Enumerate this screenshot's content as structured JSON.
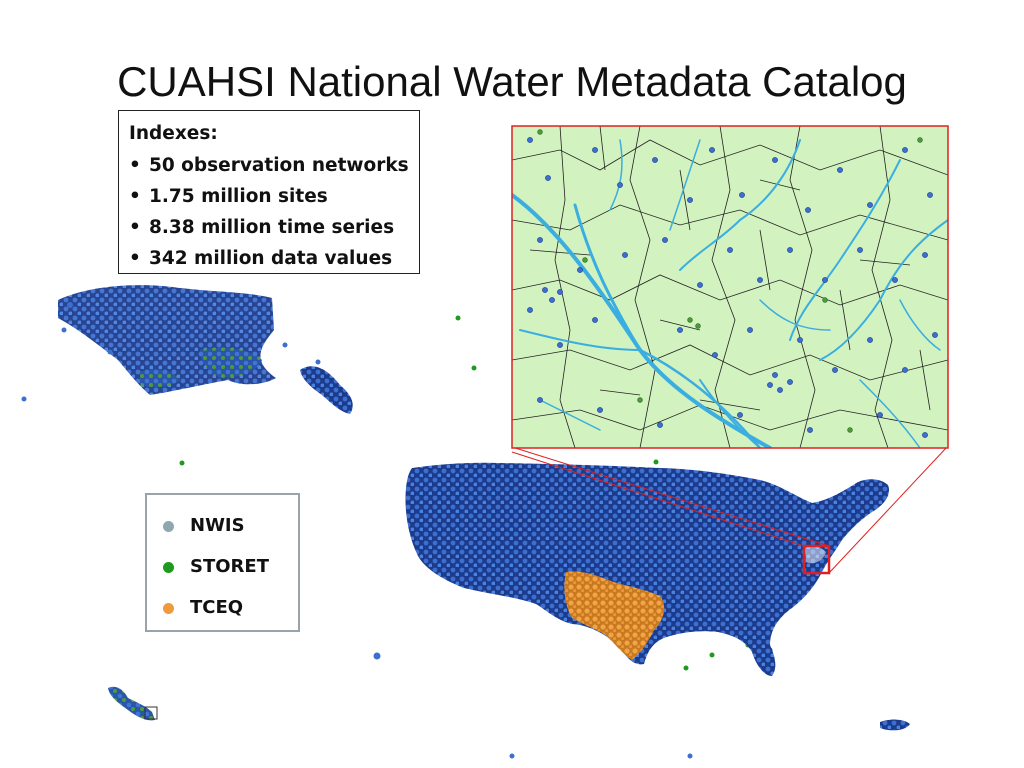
{
  "title": "CUAHSI National Water Metadata Catalog",
  "indexes": {
    "heading": "Indexes:",
    "items": [
      "50 observation networks",
      "1.75 million sites",
      "8.38 million time series",
      "342 million data values"
    ]
  },
  "legend": [
    {
      "label": "NWIS",
      "color": "#8fa8b0"
    },
    {
      "label": "STORET",
      "color": "#1e9a1e"
    },
    {
      "label": "TCEQ",
      "color": "#f09a3a"
    }
  ],
  "colors": {
    "site_blue": "#2f5fb8",
    "land_navy": "#1c3b8c",
    "inset_land": "#d2f2c0",
    "stream": "#3aaee0",
    "zoom_box": "#e02020"
  }
}
